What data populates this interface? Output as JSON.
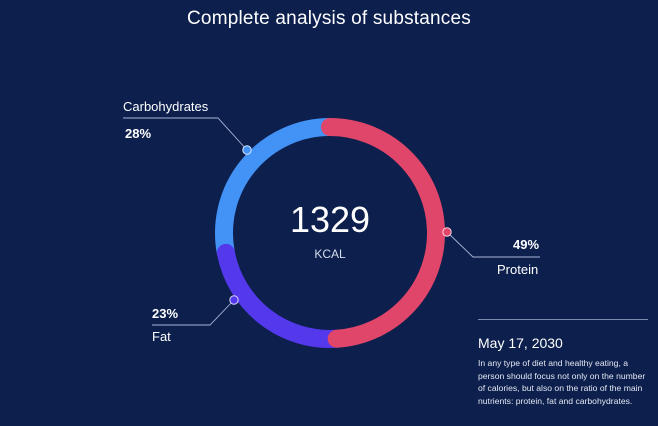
{
  "title": "Complete analysis of substances",
  "center": {
    "value": "1329",
    "unit": "KCAL"
  },
  "chart_data": {
    "type": "pie",
    "title": "Complete analysis of substances",
    "total": 1329,
    "unit": "KCAL",
    "slices": [
      {
        "name": "Protein",
        "value": 49,
        "label": "49%",
        "color": "#e0456a"
      },
      {
        "name": "Fat",
        "value": 23,
        "label": "23%",
        "color": "#5438ec"
      },
      {
        "name": "Carbohydrates",
        "value": 28,
        "label": "28%",
        "color": "#4392f5"
      }
    ]
  },
  "legend": {
    "carbohydrates": {
      "name": "Carbohydrates",
      "percent": "28%"
    },
    "fat": {
      "name": "Fat",
      "percent": "23%"
    },
    "protein": {
      "name": "Protein",
      "percent": "49%"
    }
  },
  "note": {
    "date": "May 17, 2030",
    "text": "In any type of diet and healthy eating, a person should focus not only on the number of calories, but also on the ratio of the main nutrients: protein, fat and carbohydrates."
  },
  "colors": {
    "background": "#0c1f4d",
    "leader_line": "#a9b6d6"
  }
}
